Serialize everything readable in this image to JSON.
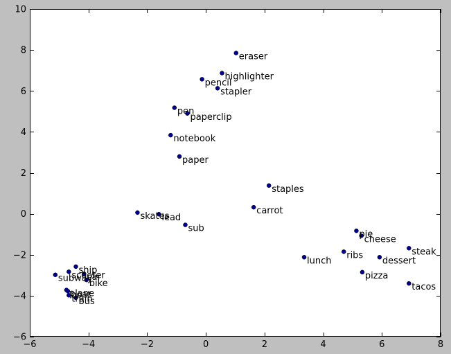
{
  "chart_data": {
    "type": "scatter",
    "title": "",
    "xlabel": "",
    "ylabel": "",
    "xlim": [
      -6,
      8
    ],
    "ylim": [
      -6,
      10
    ],
    "xticks": [
      -6,
      -4,
      -2,
      0,
      2,
      4,
      6,
      8
    ],
    "yticks": [
      -6,
      -4,
      -2,
      0,
      2,
      4,
      6,
      8,
      10
    ],
    "grid": false,
    "colors": {
      "point": "#00008b",
      "axes_bg": "#ffffff",
      "figure_bg": "#bfbfbf"
    },
    "points": [
      {
        "label": "eraser",
        "x": 1.03,
        "y": 7.85
      },
      {
        "label": "highlighter",
        "x": 0.55,
        "y": 6.87
      },
      {
        "label": "pencil",
        "x": -0.13,
        "y": 6.57
      },
      {
        "label": "stapler",
        "x": 0.4,
        "y": 6.13
      },
      {
        "label": "pen",
        "x": -1.07,
        "y": 5.18
      },
      {
        "label": "paperclip",
        "x": -0.63,
        "y": 4.9
      },
      {
        "label": "notebook",
        "x": -1.2,
        "y": 3.84
      },
      {
        "label": "paper",
        "x": -0.9,
        "y": 2.8
      },
      {
        "label": "staples",
        "x": 2.15,
        "y": 1.38
      },
      {
        "label": "carrot",
        "x": 1.63,
        "y": 0.32
      },
      {
        "label": "skates",
        "x": -2.33,
        "y": 0.06
      },
      {
        "label": "lead",
        "x": -1.6,
        "y": -0.02
      },
      {
        "label": "sub",
        "x": -0.7,
        "y": -0.54
      },
      {
        "label": "pie",
        "x": 5.13,
        "y": -0.83
      },
      {
        "label": "cheese",
        "x": 5.3,
        "y": -1.07
      },
      {
        "label": "steak",
        "x": 6.92,
        "y": -1.68
      },
      {
        "label": "ribs",
        "x": 4.7,
        "y": -1.85
      },
      {
        "label": "lunch",
        "x": 3.35,
        "y": -2.12
      },
      {
        "label": "dessert",
        "x": 5.92,
        "y": -2.12
      },
      {
        "label": "pizza",
        "x": 5.33,
        "y": -2.85
      },
      {
        "label": "tacos",
        "x": 6.92,
        "y": -3.4
      },
      {
        "label": "ship",
        "x": -4.43,
        "y": -2.58
      },
      {
        "label": "scooter",
        "x": -4.67,
        "y": -2.83
      },
      {
        "label": "car",
        "x": -4.15,
        "y": -2.93
      },
      {
        "label": "subway",
        "x": -5.13,
        "y": -2.98
      },
      {
        "label": "bike",
        "x": -4.07,
        "y": -3.23
      },
      {
        "label": "plane",
        "x": -4.75,
        "y": -3.72
      },
      {
        "label": "boat",
        "x": -4.7,
        "y": -3.78
      },
      {
        "label": "train",
        "x": -4.67,
        "y": -3.98
      },
      {
        "label": "bus",
        "x": -4.43,
        "y": -4.1
      }
    ]
  }
}
